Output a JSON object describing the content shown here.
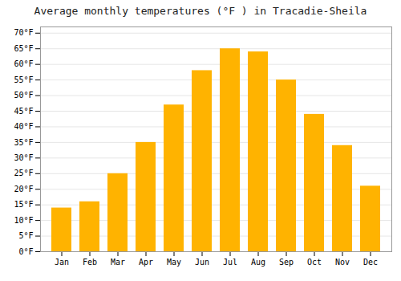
{
  "chart_data": {
    "type": "bar",
    "title": "Average monthly temperatures (°F ) in Tracadie-Sheila",
    "categories": [
      "Jan",
      "Feb",
      "Mar",
      "Apr",
      "May",
      "Jun",
      "Jul",
      "Aug",
      "Sep",
      "Oct",
      "Nov",
      "Dec"
    ],
    "values": [
      14,
      16,
      25,
      35,
      47,
      58,
      65,
      64,
      55,
      44,
      34,
      21
    ],
    "color": "#FFB300",
    "ylim": [
      0,
      72
    ],
    "yticks": [
      {
        "value": 0,
        "label": "0°F"
      },
      {
        "value": 5,
        "label": "5°F"
      },
      {
        "value": 10,
        "label": "10°F"
      },
      {
        "value": 15,
        "label": "15°F"
      },
      {
        "value": 20,
        "label": "20°F"
      },
      {
        "value": 25,
        "label": "25°F"
      },
      {
        "value": 30,
        "label": "30°F"
      },
      {
        "value": 35,
        "label": "35°F"
      },
      {
        "value": 40,
        "label": "40°F"
      },
      {
        "value": 45,
        "label": "45°F"
      },
      {
        "value": 50,
        "label": "50°F"
      },
      {
        "value": 55,
        "label": "55°F"
      },
      {
        "value": 60,
        "label": "60°F"
      },
      {
        "value": 65,
        "label": "65°F"
      },
      {
        "value": 70,
        "label": "70°F"
      }
    ],
    "grid": true
  }
}
